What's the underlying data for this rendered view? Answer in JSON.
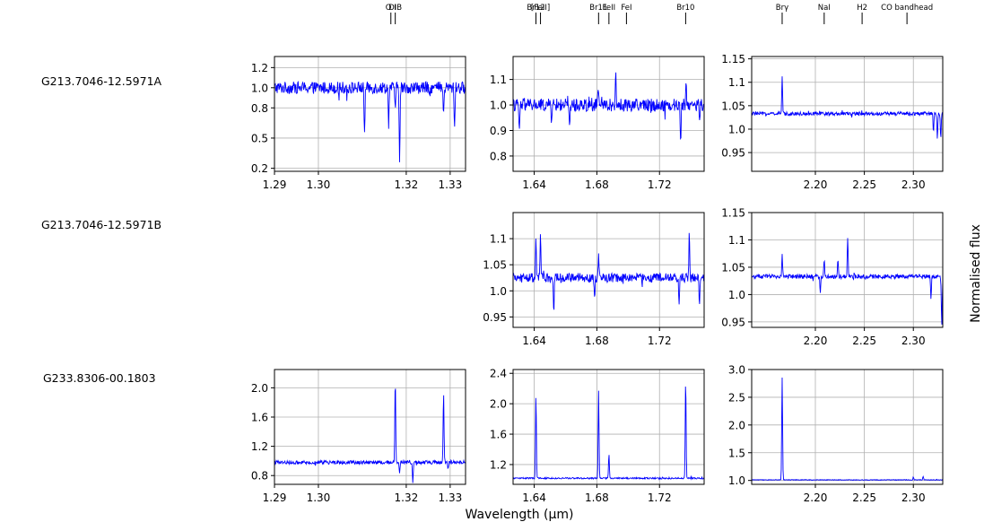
{
  "figure": {
    "xlabel": "Wavelength (μm)",
    "ylabel": "Normalised flux",
    "objects": [
      "G213.7046-12.5971A",
      "G213.7046-12.5971B",
      "G233.8306-00.1803"
    ]
  },
  "line_markers": [
    [
      {
        "label": "O I",
        "x": 1.3165
      },
      {
        "label": "DIB",
        "x": 1.3175
      }
    ],
    [
      {
        "label": "Br12",
        "x": 1.6411
      },
      {
        "label": "[FeII]",
        "x": 1.644
      },
      {
        "label": "Br11",
        "x": 1.6811
      },
      {
        "label": "FeII",
        "x": 1.6877
      },
      {
        "label": "FeI",
        "x": 1.6989
      },
      {
        "label": "Br10",
        "x": 1.7367
      }
    ],
    [
      {
        "label": "Brγ",
        "x": 2.1661
      },
      {
        "label": "NaI",
        "x": 2.209
      },
      {
        "label": "H2",
        "x": 2.2477
      },
      {
        "label": "CO bandhead",
        "x": 2.2935
      }
    ]
  ],
  "colors": {
    "line": "#0000ff",
    "grid": "#b0b0b0",
    "axis": "#000000"
  },
  "chart_data": [
    {
      "type": "line",
      "row": 0,
      "col": 0,
      "object": "G213.7046-12.5971A",
      "xlim": [
        1.29,
        1.3335
      ],
      "ylim": [
        0.17,
        1.31
      ],
      "xticks": [
        1.29,
        1.3,
        1.32,
        1.33
      ],
      "xticklabels": [
        "1.29",
        "1.30",
        "1.32",
        "1.33"
      ],
      "yticks": [
        0.2,
        0.5,
        0.8,
        1.0,
        1.2
      ],
      "yticklabels": [
        "0.2",
        "0.5",
        "0.8",
        "1.0",
        "1.2"
      ],
      "grid": true,
      "series": [
        {
          "baseline": 1.0,
          "noise": 0.06,
          "features": [
            {
              "x": 1.3105,
              "h": -0.48
            },
            {
              "x": 1.316,
              "h": -0.35
            },
            {
              "x": 1.3175,
              "h": -0.22
            },
            {
              "x": 1.3185,
              "h": -0.75
            },
            {
              "x": 1.3285,
              "h": -0.3
            },
            {
              "x": 1.331,
              "h": -0.4
            }
          ]
        }
      ]
    },
    {
      "type": "line",
      "row": 0,
      "col": 1,
      "object": "G213.7046-12.5971A",
      "xlim": [
        1.6265,
        1.7485
      ],
      "ylim": [
        0.74,
        1.19
      ],
      "xticks": [
        1.64,
        1.68,
        1.72
      ],
      "xticklabels": [
        "1.64",
        "1.68",
        "1.72"
      ],
      "yticks": [
        0.8,
        0.9,
        1.0,
        1.1
      ],
      "yticklabels": [
        "0.8",
        "0.9",
        "1.0",
        "1.1"
      ],
      "grid": true,
      "series": [
        {
          "baseline": 1.0,
          "noise": 0.025,
          "features": [
            {
              "x": 1.6305,
              "h": -0.11
            },
            {
              "x": 1.651,
              "h": -0.05
            },
            {
              "x": 1.6625,
              "h": -0.09
            },
            {
              "x": 1.681,
              "h": 0.07
            },
            {
              "x": 1.692,
              "h": 0.12
            },
            {
              "x": 1.7335,
              "h": -0.15
            },
            {
              "x": 1.737,
              "h": 0.09
            },
            {
              "x": 1.7455,
              "h": -0.07
            }
          ]
        }
      ]
    },
    {
      "type": "line",
      "row": 0,
      "col": 2,
      "object": "G213.7046-12.5971A",
      "xlim": [
        2.135,
        2.33
      ],
      "ylim": [
        0.91,
        1.155
      ],
      "xticks": [
        2.2,
        2.25,
        2.3
      ],
      "xticklabels": [
        "2.20",
        "2.25",
        "2.30"
      ],
      "yticks": [
        0.95,
        1.0,
        1.05,
        1.1,
        1.15
      ],
      "yticklabels": [
        "0.95",
        "1.0",
        "1.05",
        "1.1",
        "1.15"
      ],
      "grid": true,
      "series": [
        {
          "baseline": 1.033,
          "noise": 0.004,
          "features": [
            {
              "x": 2.1661,
              "h": 0.078
            },
            {
              "x": 2.3205,
              "h": -0.04
            },
            {
              "x": 2.3245,
              "h": -0.05
            },
            {
              "x": 2.328,
              "h": -0.055
            }
          ]
        }
      ]
    },
    {
      "type": "line",
      "row": 1,
      "col": 1,
      "object": "G213.7046-12.5971B",
      "xlim": [
        1.6265,
        1.7485
      ],
      "ylim": [
        0.93,
        1.15
      ],
      "xticks": [
        1.64,
        1.68,
        1.72
      ],
      "xticklabels": [
        "1.64",
        "1.68",
        "1.72"
      ],
      "yticks": [
        0.95,
        1.0,
        1.05,
        1.1
      ],
      "yticklabels": [
        "0.95",
        "1.0",
        "1.05",
        "1.1"
      ],
      "grid": true,
      "series": [
        {
          "baseline": 1.025,
          "noise": 0.009,
          "features": [
            {
              "x": 1.6411,
              "h": 0.07
            },
            {
              "x": 1.644,
              "h": 0.085
            },
            {
              "x": 1.6525,
              "h": -0.065
            },
            {
              "x": 1.6785,
              "h": -0.045
            },
            {
              "x": 1.6811,
              "h": 0.05
            },
            {
              "x": 1.7325,
              "h": -0.055
            },
            {
              "x": 1.739,
              "h": 0.085
            },
            {
              "x": 1.7455,
              "h": -0.06
            }
          ]
        }
      ]
    },
    {
      "type": "line",
      "row": 1,
      "col": 2,
      "object": "G213.7046-12.5971B",
      "xlim": [
        2.135,
        2.33
      ],
      "ylim": [
        0.94,
        1.15
      ],
      "xticks": [
        2.2,
        2.25,
        2.3
      ],
      "xticklabels": [
        "2.20",
        "2.25",
        "2.30"
      ],
      "yticks": [
        0.95,
        1.0,
        1.05,
        1.1,
        1.15
      ],
      "yticklabels": [
        "0.95",
        "1.0",
        "1.05",
        "1.1",
        "1.15"
      ],
      "grid": true,
      "series": [
        {
          "baseline": 1.033,
          "noise": 0.004,
          "features": [
            {
              "x": 2.1661,
              "h": 0.04
            },
            {
              "x": 2.205,
              "h": -0.03
            },
            {
              "x": 2.209,
              "h": 0.032
            },
            {
              "x": 2.223,
              "h": 0.035
            },
            {
              "x": 2.233,
              "h": 0.072
            },
            {
              "x": 2.318,
              "h": -0.045
            },
            {
              "x": 2.329,
              "h": -0.09
            }
          ]
        }
      ]
    },
    {
      "type": "line",
      "row": 2,
      "col": 0,
      "object": "G233.8306-00.1803",
      "xlim": [
        1.29,
        1.3335
      ],
      "ylim": [
        0.68,
        2.25
      ],
      "xticks": [
        1.29,
        1.3,
        1.32,
        1.33
      ],
      "xticklabels": [
        "1.29",
        "1.30",
        "1.32",
        "1.33"
      ],
      "yticks": [
        0.8,
        1.2,
        1.6,
        2.0
      ],
      "yticklabels": [
        "0.8",
        "1.2",
        "1.6",
        "2.0"
      ],
      "grid": true,
      "series": [
        {
          "baseline": 0.98,
          "noise": 0.025,
          "features": [
            {
              "x": 1.3175,
              "h": 1.15
            },
            {
              "x": 1.3185,
              "h": -0.15
            },
            {
              "x": 1.3215,
              "h": -0.28
            },
            {
              "x": 1.3285,
              "h": 0.97
            },
            {
              "x": 1.3295,
              "h": -0.08
            }
          ]
        }
      ]
    },
    {
      "type": "line",
      "row": 2,
      "col": 1,
      "object": "G233.8306-00.1803",
      "xlim": [
        1.6265,
        1.7485
      ],
      "ylim": [
        0.94,
        2.45
      ],
      "xticks": [
        1.64,
        1.68,
        1.72
      ],
      "xticklabels": [
        "1.64",
        "1.68",
        "1.72"
      ],
      "yticks": [
        1.2,
        1.6,
        2.0,
        2.4
      ],
      "yticklabels": [
        "1.2",
        "1.6",
        "2.0",
        "2.4"
      ],
      "grid": true,
      "series": [
        {
          "baseline": 1.02,
          "noise": 0.01,
          "features": [
            {
              "x": 1.6411,
              "h": 1.1
            },
            {
              "x": 1.6811,
              "h": 1.15
            },
            {
              "x": 1.6877,
              "h": 0.32
            },
            {
              "x": 1.7367,
              "h": 1.32
            }
          ]
        }
      ]
    },
    {
      "type": "line",
      "row": 2,
      "col": 2,
      "object": "G233.8306-00.1803",
      "xlim": [
        2.135,
        2.33
      ],
      "ylim": [
        0.93,
        3.0
      ],
      "xticks": [
        2.2,
        2.25,
        2.3
      ],
      "xticklabels": [
        "2.20",
        "2.25",
        "2.30"
      ],
      "yticks": [
        1.0,
        1.5,
        2.0,
        2.5,
        3.0
      ],
      "yticklabels": [
        "1.0",
        "1.5",
        "2.0",
        "2.5",
        "3.0"
      ],
      "grid": true,
      "series": [
        {
          "baseline": 1.01,
          "noise": 0.006,
          "features": [
            {
              "x": 2.1661,
              "h": 1.85
            },
            {
              "x": 2.3,
              "h": 0.05
            },
            {
              "x": 2.31,
              "h": 0.06
            }
          ]
        }
      ]
    }
  ]
}
